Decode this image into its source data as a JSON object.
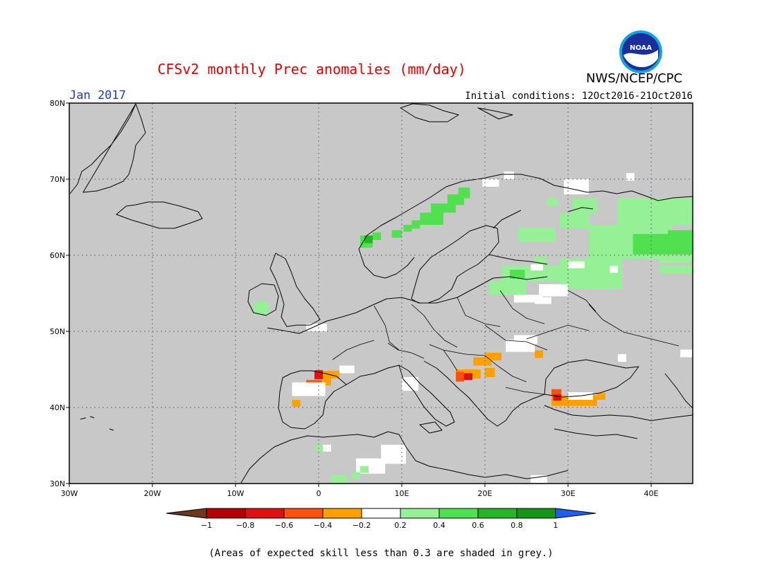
{
  "header": {
    "title": "CFSv2 monthly Prec anomalies (mm/day)",
    "org": "NWS/NCEP/CPC",
    "month": "Jan 2017",
    "initial_conditions": "Initial conditions: 12Oct2016-21Oct2016",
    "logo_text": "NOAA"
  },
  "map": {
    "lon_range": [
      -30,
      45
    ],
    "lat_range": [
      30,
      80
    ],
    "lon_ticks": [
      {
        "value": -30,
        "label": "30W"
      },
      {
        "value": -20,
        "label": "20W"
      },
      {
        "value": -10,
        "label": "10W"
      },
      {
        "value": 0,
        "label": "0"
      },
      {
        "value": 10,
        "label": "10E"
      },
      {
        "value": 20,
        "label": "20E"
      },
      {
        "value": 30,
        "label": "30E"
      },
      {
        "value": 40,
        "label": "40E"
      }
    ],
    "lat_ticks": [
      {
        "value": 80,
        "label": "80N"
      },
      {
        "value": 70,
        "label": "70N"
      },
      {
        "value": 60,
        "label": "60N"
      },
      {
        "value": 50,
        "label": "50N"
      },
      {
        "value": 40,
        "label": "40N"
      },
      {
        "value": 30,
        "label": "30N"
      }
    ],
    "background_color": "#c8c8c8",
    "grid": "dotted"
  },
  "colorbar": {
    "labels": [
      "−1",
      "−0.8",
      "−0.6",
      "−0.4",
      "−0.2",
      "0.2",
      "0.4",
      "0.6",
      "0.8",
      "1"
    ],
    "colors": [
      "#6b3a1e",
      "#b40000",
      "#e01010",
      "#ff5010",
      "#ffa000",
      "#ffffff",
      "#96f096",
      "#50e050",
      "#28b428",
      "#169616",
      "#1e5ff0"
    ]
  },
  "anomalies": [
    {
      "lon": 11.2,
      "lat": 63.5,
      "w": 1.0,
      "h": 1.1,
      "value": 0.5
    },
    {
      "lon": 12.2,
      "lat": 64.0,
      "w": 2.8,
      "h": 1.6,
      "value": 0.4
    },
    {
      "lon": 13.5,
      "lat": 65.6,
      "w": 3.0,
      "h": 1.2,
      "value": 0.4
    },
    {
      "lon": 15.5,
      "lat": 66.6,
      "w": 2.0,
      "h": 1.4,
      "value": 0.5
    },
    {
      "lon": 16.8,
      "lat": 67.5,
      "w": 1.4,
      "h": 1.4,
      "value": 0.4
    },
    {
      "lon": 5.0,
      "lat": 61.0,
      "w": 1.5,
      "h": 1.6,
      "value": 0.5
    },
    {
      "lon": 5.5,
      "lat": 61.6,
      "w": 1.0,
      "h": 1.0,
      "value": 0.7
    },
    {
      "lon": 6.5,
      "lat": 62.0,
      "w": 1.0,
      "h": 1.0,
      "value": 0.4
    },
    {
      "lon": 8.8,
      "lat": 62.3,
      "w": 1.2,
      "h": 1.0,
      "value": 0.5
    },
    {
      "lon": 10.2,
      "lat": 63.1,
      "w": 1.0,
      "h": 0.9,
      "value": 0.5
    },
    {
      "lon": 30.5,
      "lat": 65.5,
      "w": 3.0,
      "h": 2.0,
      "value": 0.3
    },
    {
      "lon": 29.0,
      "lat": 63.5,
      "w": 3.5,
      "h": 2.0,
      "value": 0.3
    },
    {
      "lon": 24.0,
      "lat": 61.8,
      "w": 4.5,
      "h": 1.8,
      "value": 0.3
    },
    {
      "lon": 29.5,
      "lat": 68.0,
      "w": 3.0,
      "h": 2.0,
      "value": 0.0
    },
    {
      "lon": 27.5,
      "lat": 66.5,
      "w": 1.2,
      "h": 1.0,
      "value": 0.3
    },
    {
      "lon": 32.5,
      "lat": 59.5,
      "w": 10.0,
      "h": 4.5,
      "value": 0.3
    },
    {
      "lon": 36.0,
      "lat": 64.0,
      "w": 9.0,
      "h": 3.5,
      "value": 0.3
    },
    {
      "lon": 41.0,
      "lat": 59.0,
      "w": 4.0,
      "h": 1.0,
      "value": 0.3
    },
    {
      "lon": 37.8,
      "lat": 60.1,
      "w": 7.2,
      "h": 2.7,
      "value": 0.5
    },
    {
      "lon": 42.0,
      "lat": 61.0,
      "w": 3.0,
      "h": 2.3,
      "value": 0.5
    },
    {
      "lon": 29.0,
      "lat": 55.6,
      "w": 7.5,
      "h": 4.0,
      "value": 0.3
    },
    {
      "lon": 22.0,
      "lat": 56.6,
      "w": 7.0,
      "h": 2.0,
      "value": 0.3
    },
    {
      "lon": 20.5,
      "lat": 54.8,
      "w": 4.5,
      "h": 1.8,
      "value": 0.3
    },
    {
      "lon": 23.0,
      "lat": 56.9,
      "w": 1.8,
      "h": 1.2,
      "value": 0.5
    },
    {
      "lon": 26.0,
      "lat": 58.8,
      "w": 1.5,
      "h": 1.0,
      "value": 0.3
    },
    {
      "lon": 23.5,
      "lat": 53.8,
      "w": 3.5,
      "h": 1.0,
      "value": 0.0
    },
    {
      "lon": 26.5,
      "lat": 54.6,
      "w": 3.5,
      "h": 1.6,
      "value": 0.0
    },
    {
      "lon": 30.0,
      "lat": 58.3,
      "w": 2.0,
      "h": 0.9,
      "value": 0.0
    },
    {
      "lon": 25.5,
      "lat": 58.0,
      "w": 1.5,
      "h": 0.8,
      "value": 0.0
    },
    {
      "lon": -7.8,
      "lat": 52.2,
      "w": 1.8,
      "h": 1.7,
      "value": 0.3
    },
    {
      "lon": 22.5,
      "lat": 47.3,
      "w": 3.5,
      "h": 1.6,
      "value": 0.0
    },
    {
      "lon": 23.5,
      "lat": 48.3,
      "w": 2.8,
      "h": 1.2,
      "value": 0.0
    },
    {
      "lon": 26.0,
      "lat": 46.5,
      "w": 1.0,
      "h": 1.0,
      "value": -0.3
    },
    {
      "lon": 18.6,
      "lat": 45.5,
      "w": 2.2,
      "h": 1.1,
      "value": -0.3
    },
    {
      "lon": 20.0,
      "lat": 46.2,
      "w": 2.0,
      "h": 1.0,
      "value": -0.3
    },
    {
      "lon": 20.0,
      "lat": 44.0,
      "w": 1.2,
      "h": 1.2,
      "value": -0.3
    },
    {
      "lon": 16.5,
      "lat": 43.8,
      "w": 3.0,
      "h": 1.2,
      "value": -0.3
    },
    {
      "lon": 16.5,
      "lat": 43.4,
      "w": 1.0,
      "h": 1.3,
      "value": -0.5
    },
    {
      "lon": 17.5,
      "lat": 43.6,
      "w": 1.0,
      "h": 0.9,
      "value": -0.7
    },
    {
      "lon": -1.5,
      "lat": 42.7,
      "w": 1.9,
      "h": 0.9,
      "value": -0.5
    },
    {
      "lon": -0.5,
      "lat": 43.7,
      "w": 1.0,
      "h": 1.2,
      "value": -0.7
    },
    {
      "lon": 0.5,
      "lat": 43.8,
      "w": 2.0,
      "h": 1.0,
      "value": -0.3
    },
    {
      "lon": 0.5,
      "lat": 42.9,
      "w": 1.0,
      "h": 0.9,
      "value": -0.3
    },
    {
      "lon": 2.5,
      "lat": 44.5,
      "w": 1.8,
      "h": 1.0,
      "value": 0.0
    },
    {
      "lon": -3.2,
      "lat": 41.5,
      "w": 4.0,
      "h": 1.8,
      "value": 0.0
    },
    {
      "lon": -3.2,
      "lat": 40.1,
      "w": 1.0,
      "h": 0.9,
      "value": -0.3
    },
    {
      "lon": 28.0,
      "lat": 40.2,
      "w": 5.5,
      "h": 1.4,
      "value": -0.3
    },
    {
      "lon": 28.0,
      "lat": 41.5,
      "w": 1.2,
      "h": 0.9,
      "value": -0.5
    },
    {
      "lon": 28.2,
      "lat": 40.9,
      "w": 1.0,
      "h": 0.8,
      "value": -0.7
    },
    {
      "lon": 33.5,
      "lat": 41.0,
      "w": 1.0,
      "h": 0.9,
      "value": -0.3
    },
    {
      "lon": 30.0,
      "lat": 41.0,
      "w": 3.0,
      "h": 1.0,
      "value": 0.0
    },
    {
      "lon": 4.5,
      "lat": 31.3,
      "w": 3.5,
      "h": 2.0,
      "value": 0.0
    },
    {
      "lon": 7.5,
      "lat": 32.6,
      "w": 3.0,
      "h": 2.5,
      "value": 0.0
    },
    {
      "lon": 8.5,
      "lat": 33.8,
      "w": 2.0,
      "h": 1.0,
      "value": 0.0
    },
    {
      "lon": 1.5,
      "lat": 30.1,
      "w": 2.0,
      "h": 1.0,
      "value": 0.3
    },
    {
      "lon": 4.0,
      "lat": 30.6,
      "w": 1.0,
      "h": 0.9,
      "value": 0.3
    },
    {
      "lon": 5.0,
      "lat": 31.4,
      "w": 1.0,
      "h": 0.9,
      "value": 0.3
    },
    {
      "lon": -0.3,
      "lat": 34.2,
      "w": 1.0,
      "h": 0.9,
      "value": 0.3
    },
    {
      "lon": 0.5,
      "lat": 34.2,
      "w": 1.0,
      "h": 0.9,
      "value": 0.0
    },
    {
      "lon": 10.0,
      "lat": 42.2,
      "w": 2.0,
      "h": 1.8,
      "value": 0.0
    },
    {
      "lon": 25.5,
      "lat": 30.1,
      "w": 2.0,
      "h": 1.0,
      "value": 0.0
    },
    {
      "lon": -1.5,
      "lat": 50.0,
      "w": 2.5,
      "h": 1.0,
      "value": 0.0
    },
    {
      "lon": 43.5,
      "lat": 46.6,
      "w": 1.5,
      "h": 1.0,
      "value": 0.0
    },
    {
      "lon": 36.0,
      "lat": 46.0,
      "w": 1.0,
      "h": 1.0,
      "value": 0.0
    },
    {
      "lon": 37.0,
      "lat": 69.8,
      "w": 1.0,
      "h": 1.0,
      "value": 0.0
    },
    {
      "lon": 19.7,
      "lat": 69.0,
      "w": 2.0,
      "h": 1.0,
      "value": 0.0
    },
    {
      "lon": 22.3,
      "lat": 70.0,
      "w": 1.2,
      "h": 1.0,
      "value": 0.0
    },
    {
      "lon": 41.0,
      "lat": 57.6,
      "w": 4.0,
      "h": 1.0,
      "value": 0.3
    },
    {
      "lon": 35.0,
      "lat": 57.7,
      "w": 1.0,
      "h": 0.9,
      "value": 0.0
    },
    {
      "lon": 26.0,
      "lat": 53.6,
      "w": 2.0,
      "h": 0.9,
      "value": 0.0
    }
  ],
  "footnote": "(Areas of expected skill less than 0.3 are shaded in grey.)"
}
